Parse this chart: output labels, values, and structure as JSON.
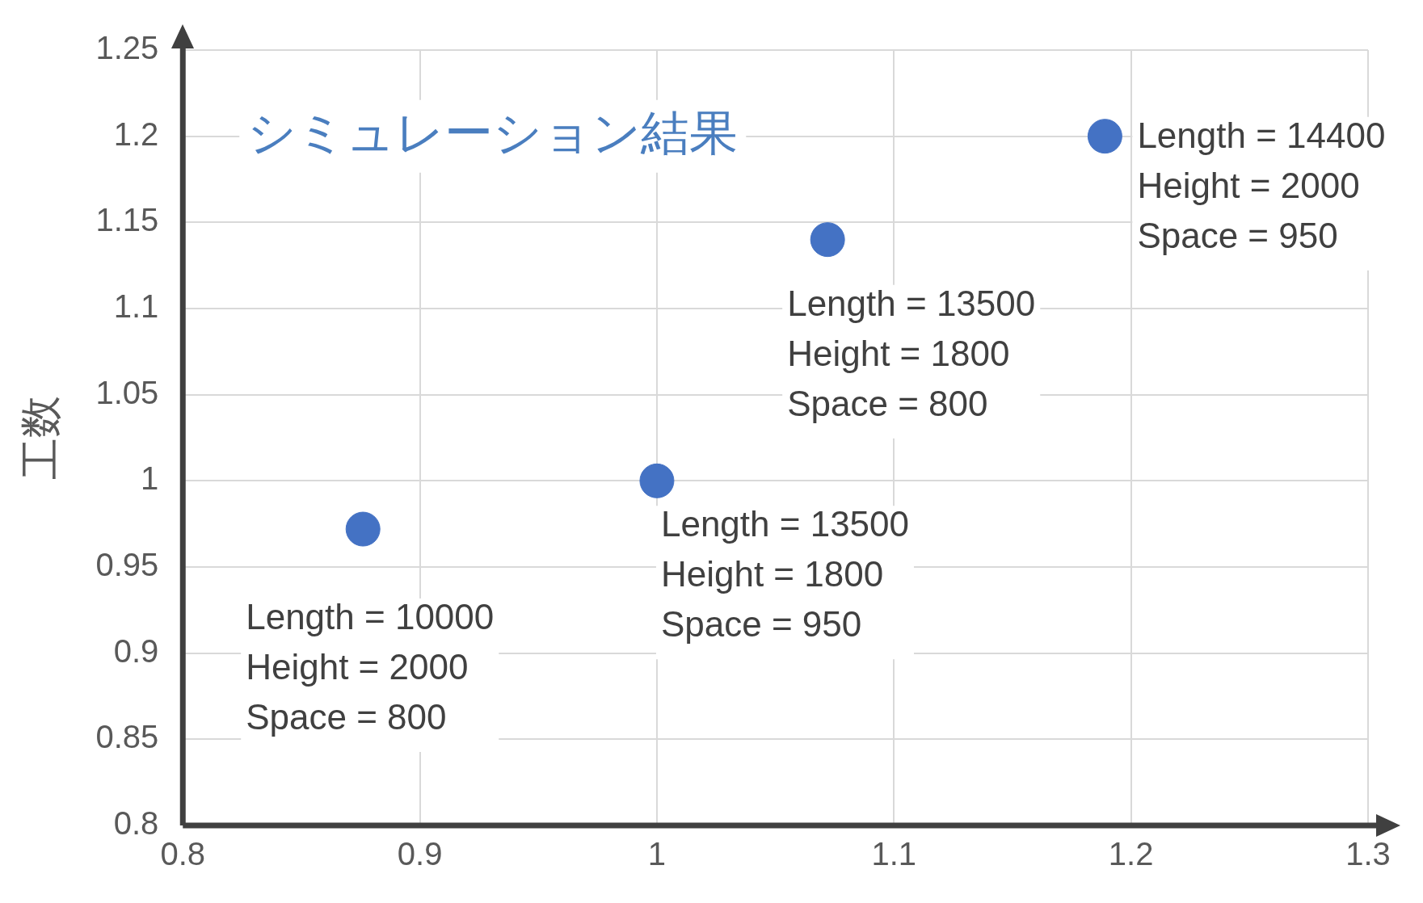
{
  "chart_data": {
    "type": "scatter",
    "title": "シミュレーション結果",
    "ylabel": "工数",
    "x": [
      0.876,
      1.0,
      1.072,
      1.189
    ],
    "values": [
      0.972,
      1.0,
      1.14,
      1.2
    ],
    "color": "#4472c4",
    "marker": "circle",
    "xlim": [
      0.8,
      1.3
    ],
    "xticks": [
      0.8,
      0.9,
      1,
      1.1,
      1.2,
      1.3
    ],
    "ylim": [
      0.8,
      1.25
    ],
    "yticks": [
      0.8,
      0.85,
      0.9,
      0.95,
      1,
      1.05,
      1.1,
      1.15,
      1.2,
      1.25
    ],
    "grid": true,
    "legend": false,
    "annotations": [
      {
        "text": "Length = 10000\nHeight = 2000\nSpace = 800",
        "x": 0.876,
        "y": 0.972
      },
      {
        "text": "Length = 13500\nHeight = 1800\nSpace = 950",
        "x": 1.0,
        "y": 1.0
      },
      {
        "text": "Length = 13500\nHeight = 1800\nSpace = 800",
        "x": 1.072,
        "y": 1.14
      },
      {
        "text": "Length = 14400\nHeight = 2000\nSpace = 950",
        "x": 1.189,
        "y": 1.2
      }
    ]
  }
}
